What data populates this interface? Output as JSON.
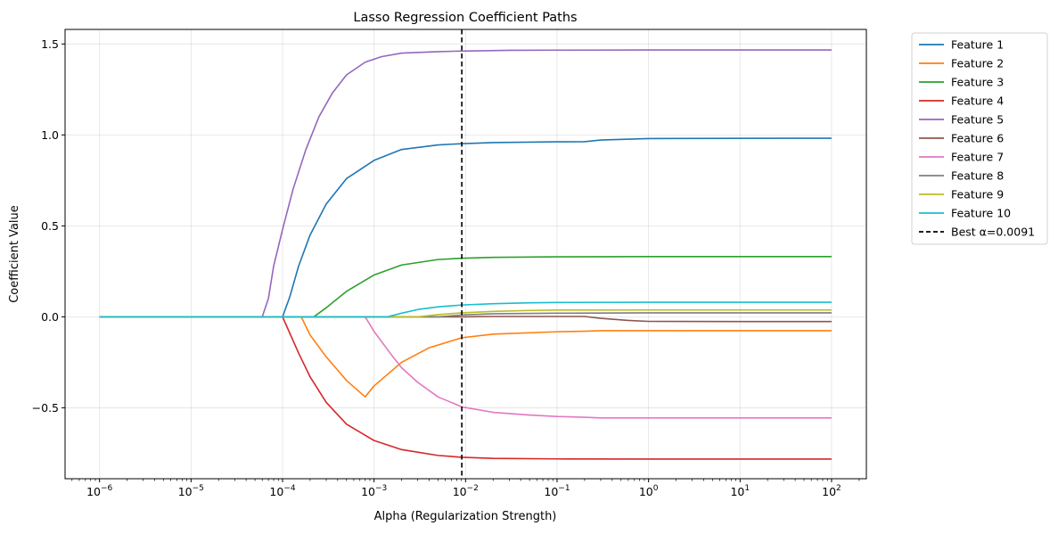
{
  "chart_data": {
    "type": "line",
    "title": "Lasso Regression Coefficient Paths",
    "xlabel": "Alpha (Regularization Strength)",
    "ylabel": "Coefficient Value",
    "xscale": "log",
    "xlim": [
      4.2e-07,
      240
    ],
    "ylim": [
      -0.89,
      1.58
    ],
    "grid": true,
    "legend_position": "outside-right",
    "x_ticks": [
      {
        "value": 1e-06,
        "exp": "−6"
      },
      {
        "value": 1e-05,
        "exp": "−5"
      },
      {
        "value": 0.0001,
        "exp": "−4"
      },
      {
        "value": 0.001,
        "exp": "−3"
      },
      {
        "value": 0.01,
        "exp": "−2"
      },
      {
        "value": 0.1,
        "exp": "−1"
      },
      {
        "value": 1,
        "exp": "0"
      },
      {
        "value": 10,
        "exp": "1"
      },
      {
        "value": 100,
        "exp": "2"
      }
    ],
    "y_ticks": [
      {
        "value": -0.5,
        "label": "−0.5"
      },
      {
        "value": 0.0,
        "label": "0.0"
      },
      {
        "value": 0.5,
        "label": "0.5"
      },
      {
        "value": 1.0,
        "label": "1.0"
      },
      {
        "value": 1.5,
        "label": "1.5"
      }
    ],
    "series": [
      {
        "name": "Feature 1",
        "color": "#1f77b4",
        "points": [
          [
            1e-06,
            0
          ],
          [
            0.0001,
            0
          ],
          [
            0.00012,
            0.11
          ],
          [
            0.00015,
            0.28
          ],
          [
            0.0002,
            0.45
          ],
          [
            0.0003,
            0.62
          ],
          [
            0.0005,
            0.76
          ],
          [
            0.001,
            0.86
          ],
          [
            0.002,
            0.92
          ],
          [
            0.005,
            0.945
          ],
          [
            0.0091,
            0.952
          ],
          [
            0.02,
            0.958
          ],
          [
            0.1,
            0.962
          ],
          [
            0.2,
            0.963
          ],
          [
            0.3,
            0.972
          ],
          [
            1,
            0.98
          ],
          [
            100,
            0.982
          ]
        ]
      },
      {
        "name": "Feature 2",
        "color": "#ff7f0e",
        "points": [
          [
            1e-06,
            0
          ],
          [
            0.00016,
            0
          ],
          [
            0.0002,
            -0.1
          ],
          [
            0.0003,
            -0.22
          ],
          [
            0.0005,
            -0.35
          ],
          [
            0.0008,
            -0.44
          ],
          [
            0.001,
            -0.38
          ],
          [
            0.002,
            -0.25
          ],
          [
            0.004,
            -0.17
          ],
          [
            0.0091,
            -0.115
          ],
          [
            0.02,
            -0.095
          ],
          [
            0.1,
            -0.082
          ],
          [
            0.2,
            -0.079
          ],
          [
            0.3,
            -0.076
          ],
          [
            1,
            -0.076
          ],
          [
            100,
            -0.076
          ]
        ]
      },
      {
        "name": "Feature 3",
        "color": "#2ca02c",
        "points": [
          [
            1e-06,
            0
          ],
          [
            0.00022,
            0
          ],
          [
            0.0003,
            0.05
          ],
          [
            0.0005,
            0.14
          ],
          [
            0.001,
            0.23
          ],
          [
            0.002,
            0.285
          ],
          [
            0.005,
            0.315
          ],
          [
            0.0091,
            0.322
          ],
          [
            0.02,
            0.327
          ],
          [
            0.1,
            0.33
          ],
          [
            1,
            0.331
          ],
          [
            100,
            0.331
          ]
        ]
      },
      {
        "name": "Feature 4",
        "color": "#d62728",
        "points": [
          [
            1e-06,
            0
          ],
          [
            0.0001,
            0
          ],
          [
            0.00012,
            -0.09
          ],
          [
            0.00015,
            -0.2
          ],
          [
            0.0002,
            -0.33
          ],
          [
            0.0003,
            -0.47
          ],
          [
            0.0005,
            -0.59
          ],
          [
            0.001,
            -0.68
          ],
          [
            0.002,
            -0.73
          ],
          [
            0.005,
            -0.762
          ],
          [
            0.0091,
            -0.772
          ],
          [
            0.02,
            -0.778
          ],
          [
            0.1,
            -0.781
          ],
          [
            1,
            -0.782
          ],
          [
            100,
            -0.782
          ]
        ]
      },
      {
        "name": "Feature 5",
        "color": "#9467bd",
        "points": [
          [
            1e-06,
            0
          ],
          [
            6e-05,
            0
          ],
          [
            7e-05,
            0.1
          ],
          [
            8e-05,
            0.28
          ],
          [
            0.0001,
            0.48
          ],
          [
            0.00013,
            0.7
          ],
          [
            0.00018,
            0.92
          ],
          [
            0.00025,
            1.1
          ],
          [
            0.00035,
            1.23
          ],
          [
            0.0005,
            1.33
          ],
          [
            0.0008,
            1.4
          ],
          [
            0.0012,
            1.43
          ],
          [
            0.002,
            1.45
          ],
          [
            0.005,
            1.458
          ],
          [
            0.0091,
            1.461
          ],
          [
            0.03,
            1.465
          ],
          [
            0.1,
            1.466
          ],
          [
            1,
            1.467
          ],
          [
            100,
            1.467
          ]
        ]
      },
      {
        "name": "Feature 6",
        "color": "#8c564b",
        "points": [
          [
            1e-06,
            0
          ],
          [
            0.009,
            0
          ],
          [
            0.02,
            0.002
          ],
          [
            0.1,
            0.002
          ],
          [
            0.2,
            0.002
          ],
          [
            0.3,
            -0.008
          ],
          [
            0.6,
            -0.02
          ],
          [
            1,
            -0.025
          ],
          [
            10,
            -0.026
          ],
          [
            100,
            -0.026
          ]
        ]
      },
      {
        "name": "Feature 7",
        "color": "#e377c2",
        "points": [
          [
            1e-06,
            0
          ],
          [
            0.0008,
            0
          ],
          [
            0.001,
            -0.08
          ],
          [
            0.0015,
            -0.2
          ],
          [
            0.002,
            -0.28
          ],
          [
            0.003,
            -0.36
          ],
          [
            0.005,
            -0.44
          ],
          [
            0.0091,
            -0.495
          ],
          [
            0.02,
            -0.525
          ],
          [
            0.05,
            -0.54
          ],
          [
            0.1,
            -0.548
          ],
          [
            0.2,
            -0.552
          ],
          [
            0.3,
            -0.556
          ],
          [
            1,
            -0.556
          ],
          [
            100,
            -0.556
          ]
        ]
      },
      {
        "name": "Feature 8",
        "color": "#7f7f7f",
        "points": [
          [
            1e-06,
            0
          ],
          [
            0.005,
            0
          ],
          [
            0.0091,
            0.01
          ],
          [
            0.02,
            0.017
          ],
          [
            0.1,
            0.02
          ],
          [
            1,
            0.022
          ],
          [
            100,
            0.022
          ]
        ]
      },
      {
        "name": "Feature 9",
        "color": "#bcbd22",
        "points": [
          [
            1e-06,
            0
          ],
          [
            0.003,
            0
          ],
          [
            0.005,
            0.012
          ],
          [
            0.0091,
            0.022
          ],
          [
            0.02,
            0.03
          ],
          [
            0.05,
            0.035
          ],
          [
            0.1,
            0.037
          ],
          [
            1,
            0.038
          ],
          [
            100,
            0.038
          ]
        ]
      },
      {
        "name": "Feature 10",
        "color": "#17becf",
        "points": [
          [
            1e-06,
            0
          ],
          [
            0.0014,
            0
          ],
          [
            0.002,
            0.02
          ],
          [
            0.003,
            0.04
          ],
          [
            0.005,
            0.055
          ],
          [
            0.0091,
            0.065
          ],
          [
            0.02,
            0.072
          ],
          [
            0.05,
            0.077
          ],
          [
            0.1,
            0.079
          ],
          [
            1,
            0.08
          ],
          [
            100,
            0.08
          ]
        ]
      }
    ],
    "reference_line": {
      "name": "Best α=0.0091",
      "x": 0.0091,
      "color": "#000000",
      "style": "dashed"
    }
  }
}
